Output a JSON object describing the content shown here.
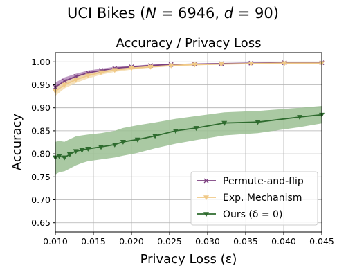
{
  "suptitle": "UCI Bikes (N = 6946, d = 90)",
  "chart_data": {
    "type": "line",
    "title": "Accuracy / Privacy Loss",
    "xlabel": "Privacy Loss (ε)",
    "ylabel": "Accuracy",
    "xlim": [
      0.01,
      0.045
    ],
    "ylim": [
      0.63,
      1.02
    ],
    "xticks": [
      0.01,
      0.015,
      0.02,
      0.025,
      0.03,
      0.035,
      0.04,
      0.045
    ],
    "xtick_labels": [
      "0.010",
      "0.015",
      "0.020",
      "0.025",
      "0.030",
      "0.035",
      "0.040",
      "0.045"
    ],
    "yticks": [
      0.65,
      0.7,
      0.75,
      0.8,
      0.85,
      0.9,
      0.95,
      1.0
    ],
    "ytick_labels": [
      "0.65",
      "0.70",
      "0.75",
      "0.80",
      "0.85",
      "0.90",
      "0.95",
      "1.00"
    ],
    "grid": true,
    "legend_position": "lower-right",
    "series": [
      {
        "name": "Permute-and-flip",
        "color": "#7b3f7f",
        "band_color": "#b48ab9",
        "marker": "x",
        "x": [
          0.01,
          0.0112,
          0.0127,
          0.0143,
          0.016,
          0.0178,
          0.02,
          0.0225,
          0.0252,
          0.0283,
          0.0318,
          0.0357,
          0.0401,
          0.045
        ],
        "y": [
          0.945,
          0.958,
          0.968,
          0.976,
          0.981,
          0.986,
          0.989,
          0.992,
          0.994,
          0.995,
          0.996,
          0.997,
          0.998,
          0.998
        ],
        "y_low": [
          0.935,
          0.95,
          0.962,
          0.971,
          0.977,
          0.983,
          0.987,
          0.99,
          0.993,
          0.994,
          0.995,
          0.996,
          0.997,
          0.997
        ],
        "y_high": [
          0.955,
          0.966,
          0.974,
          0.981,
          0.985,
          0.989,
          0.991,
          0.994,
          0.995,
          0.996,
          0.997,
          0.998,
          0.999,
          0.999
        ]
      },
      {
        "name": "Exp. Mechanism",
        "color": "#f0c987",
        "band_color": "#f5ddb0",
        "marker": "v",
        "x": [
          0.01,
          0.0112,
          0.0127,
          0.0143,
          0.016,
          0.0178,
          0.02,
          0.0225,
          0.0252,
          0.0283,
          0.0318,
          0.0357,
          0.0401,
          0.045
        ],
        "y": [
          0.936,
          0.95,
          0.961,
          0.97,
          0.977,
          0.982,
          0.986,
          0.989,
          0.992,
          0.994,
          0.995,
          0.996,
          0.997,
          0.997
        ],
        "y_low": [
          0.926,
          0.942,
          0.954,
          0.964,
          0.972,
          0.978,
          0.983,
          0.987,
          0.99,
          0.992,
          0.994,
          0.995,
          0.996,
          0.996
        ],
        "y_high": [
          0.946,
          0.958,
          0.968,
          0.976,
          0.982,
          0.986,
          0.989,
          0.991,
          0.994,
          0.995,
          0.996,
          0.997,
          0.998,
          0.998
        ]
      },
      {
        "name": "Ours (δ = 0)",
        "color": "#2e6b2e",
        "band_color": "#9bbf93",
        "marker": "v",
        "x": [
          0.01,
          0.0105,
          0.0112,
          0.0119,
          0.0127,
          0.0135,
          0.0143,
          0.016,
          0.0178,
          0.0189,
          0.0208,
          0.0231,
          0.0258,
          0.0285,
          0.0322,
          0.0366,
          0.0421,
          0.045
        ],
        "y": [
          0.792,
          0.795,
          0.792,
          0.799,
          0.806,
          0.808,
          0.811,
          0.815,
          0.82,
          0.826,
          0.831,
          0.839,
          0.85,
          0.856,
          0.867,
          0.869,
          0.88,
          0.885
        ],
        "y_low": [
          0.755,
          0.76,
          0.762,
          0.768,
          0.775,
          0.78,
          0.784,
          0.788,
          0.792,
          0.796,
          0.802,
          0.812,
          0.822,
          0.83,
          0.84,
          0.845,
          0.858,
          0.866
        ],
        "y_high": [
          0.826,
          0.828,
          0.826,
          0.832,
          0.838,
          0.84,
          0.842,
          0.845,
          0.85,
          0.856,
          0.862,
          0.868,
          0.876,
          0.882,
          0.89,
          0.893,
          0.9,
          0.904
        ]
      }
    ]
  }
}
